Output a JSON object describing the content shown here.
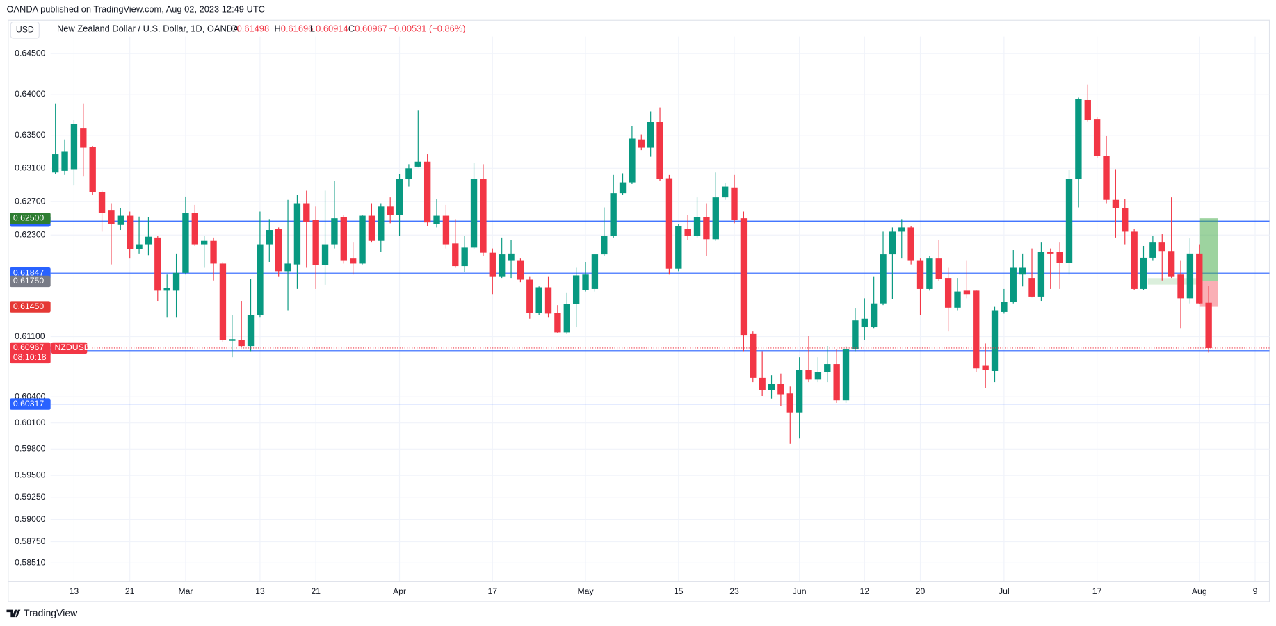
{
  "chart_data": {
    "type": "candlestick",
    "source": "OANDA published on TradingView.com, Aug 02, 2023 12:49 UTC",
    "currency": "USD",
    "title": "New Zealand Dollar / U.S. Dollar, 1D, OANDA",
    "header": {
      "o": "O",
      "h": "H",
      "l": "L",
      "c": "C",
      "change": "−0.00531 (−0.86%)"
    },
    "symbol": "NZDUSD",
    "countdown": "08:10:18",
    "brand": "TradingView",
    "categories": [
      null,
      null,
      "13",
      null,
      null,
      null,
      null,
      null,
      "21",
      null,
      null,
      null,
      null,
      null,
      "Mar",
      null,
      null,
      null,
      null,
      null,
      null,
      null,
      "13",
      null,
      null,
      null,
      null,
      null,
      "21",
      null,
      null,
      null,
      null,
      null,
      null,
      null,
      null,
      "Apr",
      null,
      null,
      null,
      null,
      null,
      null,
      null,
      null,
      null,
      "17",
      null,
      null,
      null,
      null,
      null,
      null,
      null,
      null,
      null,
      "May",
      null,
      null,
      null,
      null,
      null,
      null,
      null,
      null,
      null,
      "15",
      null,
      null,
      null,
      null,
      null,
      "23",
      null,
      null,
      null,
      null,
      null,
      null,
      "Jun",
      null,
      null,
      null,
      null,
      null,
      null,
      "12",
      null,
      null,
      null,
      null,
      null,
      "20",
      null,
      null,
      null,
      null,
      null,
      null,
      null,
      null,
      "Jul",
      null,
      null,
      null,
      null,
      null,
      null,
      null,
      null,
      null,
      "17",
      null,
      null,
      null,
      null,
      null,
      null,
      null,
      null,
      null,
      null,
      "Aug",
      null,
      null,
      null,
      null,
      null,
      "9"
    ],
    "open": [
      0.6305,
      0.6307,
      0.6309,
      0.6359,
      0.6336,
      0.6281,
      0.626,
      0.6242,
      0.6253,
      0.6213,
      0.6219,
      0.6227,
      0.6164,
      0.6164,
      0.6185,
      0.6256,
      0.6219,
      0.6223,
      0.6196,
      0.6105,
      0.6106,
      0.6099,
      0.6135,
      0.6219,
      0.6237,
      0.6187,
      0.6195,
      0.6268,
      0.6248,
      0.6194,
      0.6219,
      0.6251,
      0.6202,
      0.6196,
      0.6253,
      0.6223,
      0.6264,
      0.6254,
      0.6297,
      0.6312,
      0.6318,
      0.6243,
      0.6253,
      0.622,
      0.6193,
      0.6215,
      0.6297,
      0.6209,
      0.6181,
      0.62,
      0.62,
      0.6177,
      0.6138,
      0.6168,
      0.6138,
      0.6115,
      0.6148,
      0.6165,
      0.6166,
      0.6207,
      0.6229,
      0.628,
      0.6293,
      0.6345,
      0.6335,
      0.6366,
      0.6298,
      0.619,
      0.6237,
      0.6229,
      0.6251,
      0.6225,
      0.6275,
      0.6287,
      0.625,
      0.6113,
      0.6062,
      0.6048,
      0.6055,
      0.6044,
      0.6022,
      0.6071,
      0.606,
      0.6069,
      0.6078,
      0.6036,
      0.6095,
      0.6121,
      0.6121,
      0.6149,
      0.6207,
      0.6234,
      0.6239,
      0.62,
      0.6166,
      0.6202,
      0.6179,
      0.6144,
      0.6164,
      0.6164,
      0.6076,
      0.607,
      0.6139,
      0.6151,
      0.6183,
      0.6179,
      0.6157,
      0.621,
      0.621,
      0.6197,
      0.6297,
      0.6393,
      0.637,
      0.6325,
      0.6272,
      0.6262,
      0.6234,
      0.6166,
      0.6203,
      0.6221,
      0.6211,
      0.6183,
      0.6155,
      0.6208,
      0.61498,
      null,
      null,
      null,
      null,
      null
    ],
    "high": [
      0.6389,
      0.6345,
      0.6369,
      0.6389,
      0.6337,
      0.6283,
      0.6268,
      0.6262,
      0.6258,
      0.6252,
      0.6251,
      0.6229,
      0.6183,
      0.6208,
      0.6276,
      0.6266,
      0.6229,
      0.6227,
      0.6198,
      0.6135,
      0.6152,
      0.6178,
      0.6258,
      0.6249,
      0.6239,
      0.6272,
      0.6278,
      0.6283,
      0.6264,
      0.6283,
      0.6295,
      0.6254,
      0.6221,
      0.6254,
      0.6268,
      0.6268,
      0.6275,
      0.6303,
      0.6315,
      0.638,
      0.6327,
      0.6273,
      0.6266,
      0.6249,
      0.6229,
      0.6317,
      0.6315,
      0.6214,
      0.6227,
      0.6224,
      0.6202,
      0.6181,
      0.6169,
      0.6181,
      0.6147,
      0.6162,
      0.6191,
      0.6198,
      0.6207,
      0.6263,
      0.6302,
      0.6304,
      0.6361,
      0.6351,
      0.6379,
      0.6384,
      0.6302,
      0.6243,
      0.6254,
      0.6275,
      0.6268,
      0.6305,
      0.6292,
      0.6302,
      0.6258,
      0.6116,
      0.6093,
      0.6065,
      0.6067,
      0.6052,
      0.6086,
      0.6111,
      0.6086,
      0.6099,
      0.6095,
      0.6099,
      0.6143,
      0.6155,
      0.6181,
      0.6234,
      0.6239,
      0.6249,
      0.6241,
      0.6202,
      0.6205,
      0.6224,
      0.6191,
      0.6179,
      0.62,
      0.6165,
      0.6102,
      0.6145,
      0.6166,
      0.6212,
      0.6208,
      0.6214,
      0.6221,
      0.6214,
      0.6221,
      0.6308,
      0.6396,
      0.6412,
      0.6372,
      0.6349,
      0.6309,
      0.6273,
      0.6237,
      0.6217,
      0.6229,
      0.6231,
      0.6275,
      0.62,
      0.6226,
      0.6219,
      0.61696,
      null,
      null,
      null,
      null,
      null
    ],
    "low": [
      0.6303,
      0.6302,
      0.629,
      0.63,
      0.6278,
      0.6234,
      0.6195,
      0.6236,
      0.6202,
      0.6208,
      0.6206,
      0.6152,
      0.6133,
      0.6133,
      0.6183,
      0.6217,
      0.6191,
      0.6176,
      0.6104,
      0.6086,
      0.6098,
      0.6093,
      0.6133,
      0.6198,
      0.6181,
      0.6141,
      0.6166,
      0.6191,
      0.6166,
      0.6171,
      0.6214,
      0.6196,
      0.6183,
      0.6195,
      0.6221,
      0.621,
      0.6244,
      0.6229,
      0.6288,
      0.6311,
      0.6241,
      0.6239,
      0.6214,
      0.6191,
      0.6186,
      0.6213,
      0.6205,
      0.616,
      0.6179,
      0.6179,
      0.6174,
      0.6131,
      0.6135,
      0.6133,
      0.6114,
      0.6113,
      0.6121,
      0.6163,
      0.6163,
      0.6205,
      0.6227,
      0.6278,
      0.6291,
      0.6332,
      0.6324,
      0.6295,
      0.6183,
      0.6187,
      0.6224,
      0.6227,
      0.6205,
      0.6223,
      0.6272,
      0.6244,
      0.6093,
      0.6057,
      0.6041,
      0.6038,
      0.6029,
      0.5986,
      0.5992,
      0.6057,
      0.6057,
      0.6057,
      0.6033,
      0.6033,
      0.6093,
      0.6106,
      0.612,
      0.6147,
      0.6154,
      0.6202,
      0.6195,
      0.6135,
      0.6164,
      0.6175,
      0.6116,
      0.6141,
      0.6155,
      0.6069,
      0.605,
      0.6057,
      0.6137,
      0.6149,
      0.6169,
      0.6156,
      0.6152,
      0.6166,
      0.6166,
      0.6183,
      0.6263,
      0.6367,
      0.6322,
      0.6268,
      0.6227,
      0.6219,
      0.6165,
      0.6165,
      0.62,
      0.6176,
      0.6179,
      0.612,
      0.6149,
      0.6148,
      0.60914,
      null,
      null,
      null,
      null,
      null
    ],
    "close": [
      0.6327,
      0.633,
      0.6364,
      0.6335,
      0.6281,
      0.6256,
      0.6243,
      0.6253,
      0.6213,
      0.6219,
      0.6228,
      0.6164,
      0.6167,
      0.6185,
      0.6256,
      0.6219,
      0.6223,
      0.6196,
      0.6106,
      0.6107,
      0.6099,
      0.6135,
      0.6219,
      0.6236,
      0.6187,
      0.6196,
      0.6268,
      0.6246,
      0.6194,
      0.6219,
      0.625,
      0.62,
      0.6196,
      0.6253,
      0.6223,
      0.6264,
      0.6254,
      0.6297,
      0.631,
      0.6318,
      0.6245,
      0.6253,
      0.6219,
      0.6193,
      0.6215,
      0.6297,
      0.6209,
      0.6181,
      0.6207,
      0.6208,
      0.6177,
      0.6138,
      0.6168,
      0.6137,
      0.6115,
      0.6148,
      0.6182,
      0.6183,
      0.6207,
      0.6229,
      0.628,
      0.6293,
      0.6346,
      0.6335,
      0.6366,
      0.6297,
      0.619,
      0.6241,
      0.6229,
      0.6251,
      0.6225,
      0.6275,
      0.6288,
      0.6248,
      0.6112,
      0.6062,
      0.6048,
      0.6055,
      0.6043,
      0.6022,
      0.6071,
      0.606,
      0.6069,
      0.6078,
      0.6036,
      0.6095,
      0.6129,
      0.6131,
      0.6149,
      0.6207,
      0.6234,
      0.6239,
      0.62,
      0.6166,
      0.6202,
      0.6178,
      0.6144,
      0.6163,
      0.616,
      0.6073,
      0.6071,
      0.6141,
      0.6151,
      0.6191,
      0.6191,
      0.6157,
      0.621,
      0.6208,
      0.6197,
      0.6297,
      0.6394,
      0.6369,
      0.6325,
      0.6272,
      0.6262,
      0.6234,
      0.6166,
      0.6203,
      0.6221,
      0.6211,
      0.6181,
      0.6155,
      0.6208,
      0.6149,
      0.60967,
      null,
      null,
      null,
      null,
      null
    ],
    "up_color": "#089981",
    "down_color": "#f23645",
    "log": true,
    "grid": true,
    "ylim": [
      0.58306,
      0.64711
    ],
    "yticks": [
      {
        "value": 0.645,
        "label": "0.64500"
      },
      {
        "value": 0.64,
        "label": "0.64000"
      },
      {
        "value": 0.635,
        "label": "0.63500"
      },
      {
        "value": 0.631,
        "label": "0.63100"
      },
      {
        "value": 0.627,
        "label": "0.62700"
      },
      {
        "value": 0.623,
        "label": "0.62300"
      },
      {
        "value": 0.611,
        "label": "0.61100"
      },
      {
        "value": 0.604,
        "label": "0.60400"
      },
      {
        "value": 0.601,
        "label": "0.60100"
      },
      {
        "value": 0.598,
        "label": "0.59800"
      },
      {
        "value": 0.595,
        "label": "0.59500"
      },
      {
        "value": 0.5925,
        "label": "0.59250"
      },
      {
        "value": 0.59,
        "label": "0.59000"
      },
      {
        "value": 0.5875,
        "label": "0.58750"
      },
      {
        "value": 0.5851,
        "label": "0.58510"
      }
    ],
    "levels": [
      0.62466,
      0.61847,
      0.60936,
      0.60317
    ],
    "level_color": "#2962ff",
    "position": {
      "target": {
        "value": 0.625,
        "label": "0.62500"
      },
      "entry": {
        "value": 0.6175,
        "label": "0.61750"
      },
      "stop": {
        "value": 0.6145,
        "label": "0.61450"
      }
    }
  }
}
